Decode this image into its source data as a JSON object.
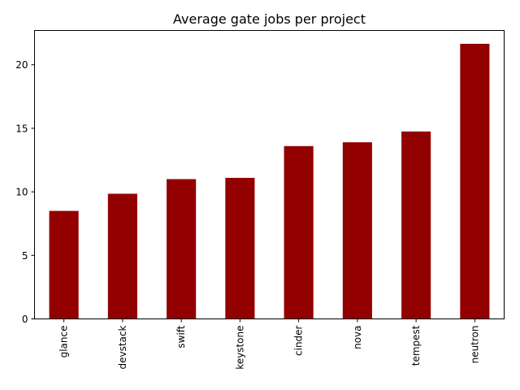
{
  "chart_data": {
    "type": "bar",
    "title": "Average gate jobs per project",
    "xlabel": "",
    "ylabel": "",
    "categories": [
      "glance",
      "devstack",
      "swift",
      "keystone",
      "cinder",
      "nova",
      "tempest",
      "neutron"
    ],
    "values": [
      8.5,
      9.85,
      11.0,
      11.1,
      13.6,
      13.9,
      14.75,
      21.65
    ],
    "ylim": [
      0,
      22.7
    ],
    "yticks": [
      0,
      5,
      10,
      15,
      20
    ],
    "bar_color": "#930000",
    "grid": false,
    "legend": "none"
  }
}
